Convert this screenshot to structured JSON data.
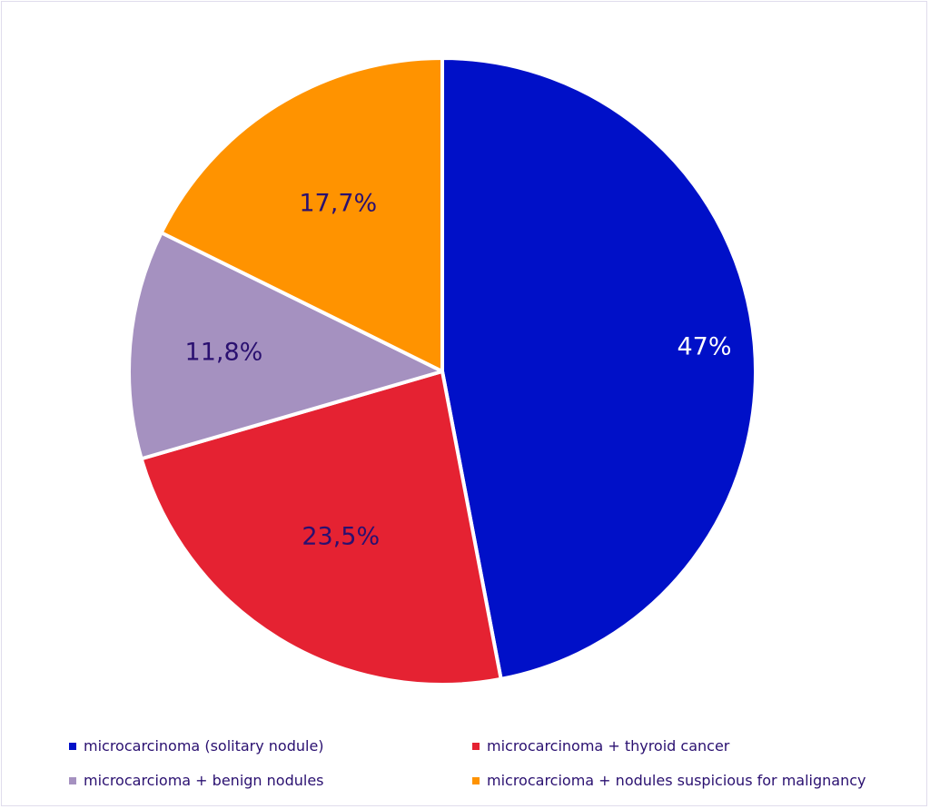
{
  "chart_data": {
    "type": "pie",
    "title": "",
    "start_angle_deg": 0,
    "direction": "clockwise",
    "categories": [
      "microcarcinoma (solitary nodule)",
      "microcarcinoma + thyroid cancer",
      "microcarcioma + benign nodules",
      "microcarcioma + nodules suspicious for malignancy"
    ],
    "values": [
      47,
      23.5,
      11.8,
      17.7
    ],
    "labels": [
      "47%",
      "23,5%",
      "11,8%",
      "17,7%"
    ],
    "colors": [
      "#0010c8",
      "#e52232",
      "#a591c0",
      "#ff9300"
    ],
    "label_colors": [
      "#ffffff",
      "#2a1070",
      "#2a1070",
      "#2a1070"
    ],
    "legend_position": "bottom"
  },
  "legend": {
    "items": [
      {
        "label": "microcarcinoma (solitary nodule)",
        "color": "#0010c8"
      },
      {
        "label": "microcarcinoma + thyroid cancer",
        "color": "#e52232"
      },
      {
        "label": "microcarcioma + benign nodules",
        "color": "#a591c0"
      },
      {
        "label": "microcarcioma + nodules suspicious for malignancy",
        "color": "#ff9300"
      }
    ]
  }
}
